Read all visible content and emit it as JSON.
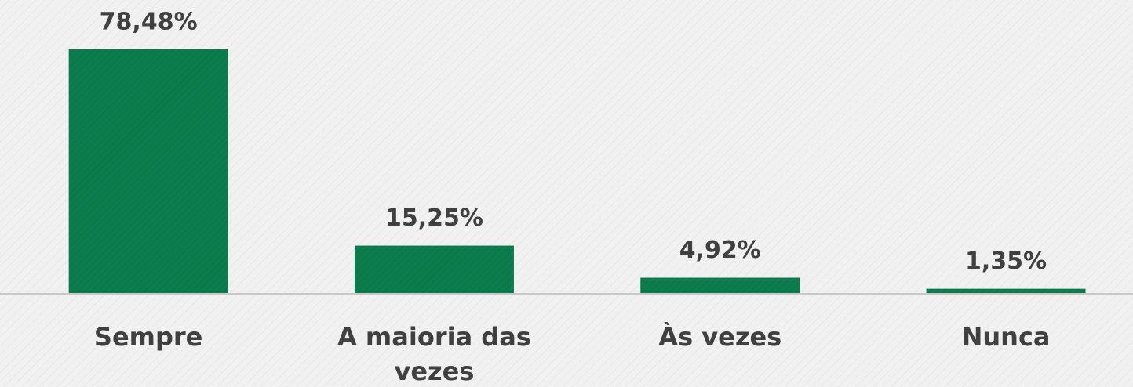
{
  "chart_data": {
    "type": "bar",
    "categories": [
      "Sempre",
      "A maioria das vezes",
      "Às vezes",
      "Nunca"
    ],
    "values": [
      78.48,
      15.25,
      4.92,
      1.35
    ],
    "value_labels": [
      "78,48%",
      "15,25%",
      "4,92%",
      "1,35%"
    ],
    "color": "#0b7a4b"
  }
}
